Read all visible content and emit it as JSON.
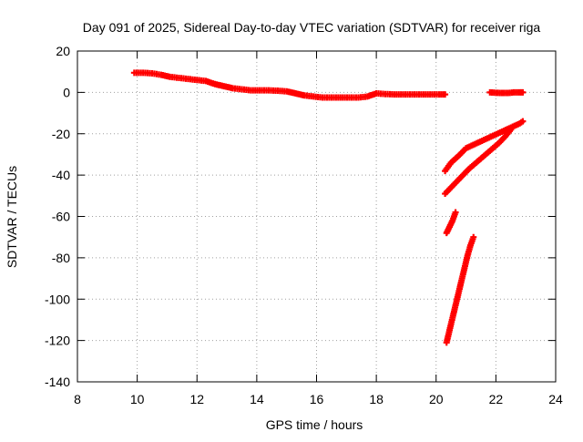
{
  "chart_data": {
    "type": "scatter",
    "title": "Day 091 of 2025, Sidereal Day-to-day VTEC variation (SDTVAR) for receiver riga",
    "xlabel": "GPS time / hours",
    "ylabel": "SDTVAR / TECUs",
    "xlim": [
      8,
      24
    ],
    "ylim": [
      -140,
      20
    ],
    "xticks": [
      8,
      10,
      12,
      14,
      16,
      18,
      20,
      22,
      24
    ],
    "yticks": [
      20,
      0,
      -20,
      -40,
      -60,
      -80,
      -100,
      -120,
      -140
    ],
    "grid": true,
    "legend": "none",
    "marker": "plus",
    "color": "#ff0000",
    "series": [
      {
        "x": [
          9.9,
          10.2,
          10.5,
          10.8,
          11.1,
          11.4,
          11.7,
          12.0,
          12.3,
          12.6,
          12.9,
          13.2,
          13.5,
          13.8,
          14.1,
          14.4,
          14.7,
          15.0,
          15.3,
          15.6,
          15.9,
          16.2,
          16.5,
          16.8,
          17.1,
          17.4,
          17.7,
          18.0,
          18.3,
          18.6,
          18.9,
          19.2,
          19.5,
          19.8,
          20.1,
          20.3
        ],
        "y": [
          9.5,
          9.5,
          9.2,
          8.5,
          7.5,
          7.0,
          6.5,
          6.0,
          5.5,
          4.0,
          3.0,
          2.0,
          1.5,
          1.0,
          1.0,
          1.0,
          0.8,
          0.5,
          -0.5,
          -1.5,
          -2.0,
          -2.5,
          -2.5,
          -2.5,
          -2.5,
          -2.5,
          -2.0,
          -0.5,
          -0.8,
          -1.0,
          -1.0,
          -1.0,
          -1.0,
          -1.0,
          -1.0,
          -1.0
        ]
      },
      {
        "x": [
          21.8,
          22.0,
          22.2,
          22.4,
          22.6,
          22.8,
          22.9
        ],
        "y": [
          0.0,
          -0.2,
          -0.3,
          -0.3,
          0.0,
          0.0,
          0.0
        ]
      },
      {
        "x": [
          20.3,
          20.5,
          20.8,
          21.0,
          21.3,
          21.6,
          21.9,
          22.2,
          22.5,
          22.8,
          22.9
        ],
        "y": [
          -38,
          -34,
          -30,
          -27,
          -25,
          -23,
          -21,
          -19,
          -17,
          -15,
          -14
        ]
      },
      {
        "x": [
          20.3,
          20.5,
          20.7,
          20.9,
          21.1,
          21.3,
          21.5,
          21.7,
          21.9,
          22.1,
          22.3,
          22.5
        ],
        "y": [
          -49,
          -46,
          -43,
          -40,
          -37,
          -34.5,
          -32,
          -29.5,
          -27,
          -24.5,
          -21.5,
          -18
        ]
      },
      {
        "x": [
          20.35,
          20.45,
          20.55,
          20.65
        ],
        "y": [
          -68,
          -65,
          -62,
          -58
        ]
      },
      {
        "x": [
          20.35,
          20.45,
          20.55,
          20.65,
          20.75,
          20.85,
          20.95,
          21.05,
          21.15,
          21.25
        ],
        "y": [
          -121,
          -115,
          -109,
          -103,
          -97,
          -91,
          -85,
          -79,
          -74,
          -70
        ]
      }
    ]
  }
}
